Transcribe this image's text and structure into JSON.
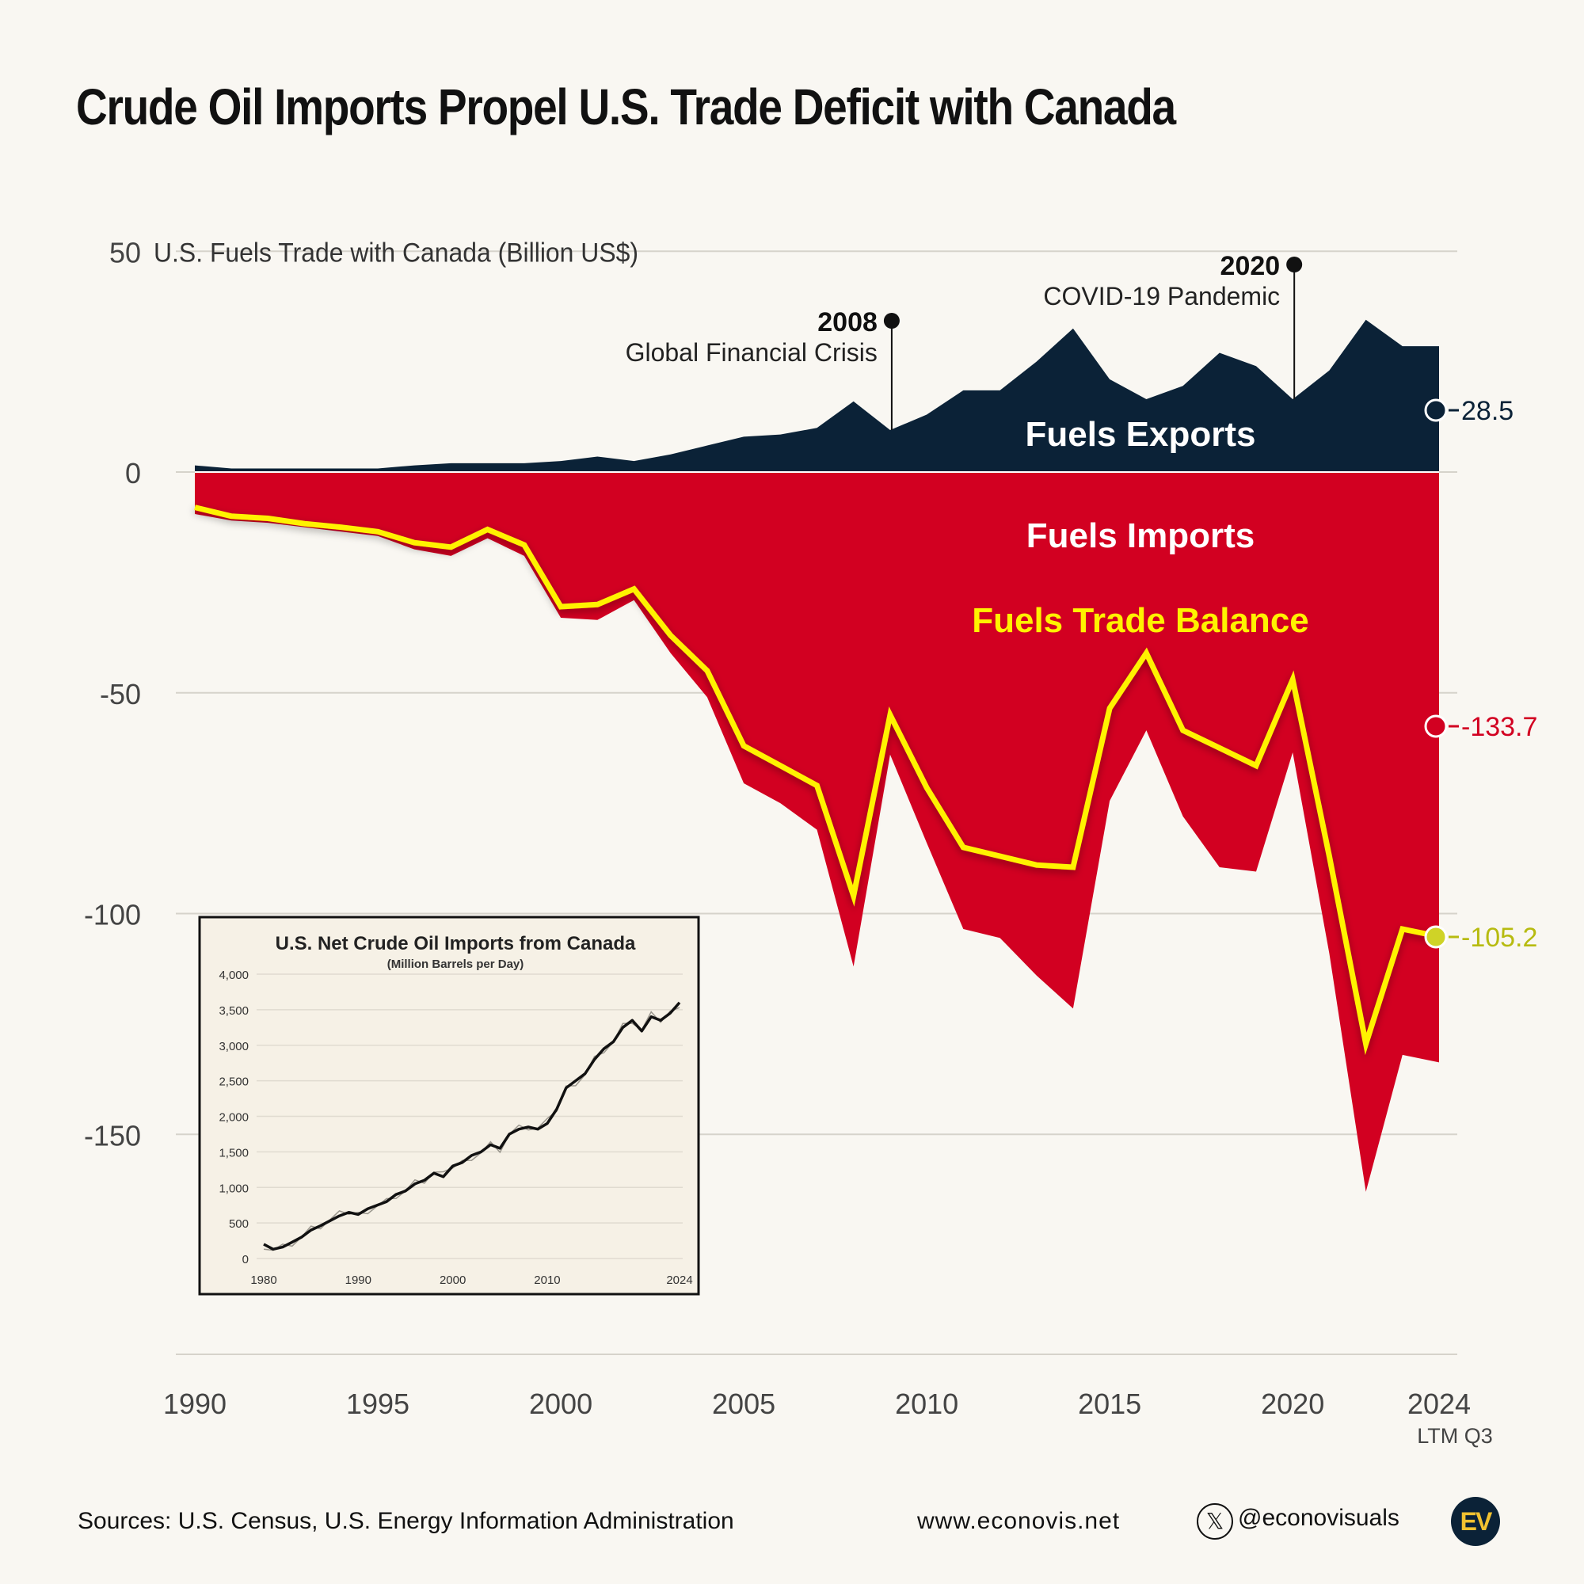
{
  "title": "Crude Oil Imports Propel U.S. Trade Deficit with Canada",
  "colors": {
    "exports": "#0b2237",
    "imports": "#d20021",
    "balance": "#fff200",
    "background": "#f9f7f2"
  },
  "chart_data": [
    {
      "type": "area",
      "ylabel": "U.S. Fuels Trade with Canada (Billion US$)",
      "ylim": [
        -200,
        50
      ],
      "yticks": [
        50,
        0,
        -50,
        -100,
        -150
      ],
      "xlim": [
        1990,
        2024
      ],
      "xticks": [
        "1990",
        "1995",
        "2000",
        "2005",
        "2010",
        "2015",
        "2020",
        "2024"
      ],
      "last_x_sublabel": "LTM Q3",
      "x": [
        1990,
        1991,
        1992,
        1993,
        1994,
        1995,
        1996,
        1997,
        1998,
        1999,
        2000,
        2001,
        2002,
        2003,
        2004,
        2005,
        2006,
        2007,
        2008,
        2009,
        2010,
        2011,
        2012,
        2013,
        2014,
        2015,
        2016,
        2017,
        2018,
        2019,
        2020,
        2021,
        2022,
        2023,
        2024
      ],
      "series": [
        {
          "name": "Fuels Exports",
          "values": [
            1.5,
            0.8,
            0.8,
            0.8,
            0.8,
            0.8,
            1.5,
            2,
            2,
            2,
            2.5,
            3.5,
            2.5,
            4,
            6,
            8,
            8.5,
            10,
            16,
            9.5,
            13,
            18.5,
            18.5,
            25,
            32.5,
            21,
            16.5,
            19.5,
            27,
            24,
            16.5,
            23,
            34.5,
            28.5,
            28.5
          ]
        },
        {
          "name": "Fuels Imports",
          "values": [
            -9.5,
            -11,
            -11.5,
            -12.5,
            -13.5,
            -14.5,
            -17.5,
            -19,
            -15,
            -19,
            -33,
            -33.5,
            -29,
            -41,
            -51,
            -70.5,
            -75,
            -81,
            -112,
            -64,
            -84,
            -103.5,
            -105.5,
            -114,
            -121.5,
            -74.5,
            -58.5,
            -78,
            -89.5,
            -90.5,
            -63.5,
            -109,
            -163,
            -132,
            -133.7
          ]
        },
        {
          "name": "Fuels Trade Balance",
          "values": [
            -8,
            -10,
            -10.5,
            -11.7,
            -12.5,
            -13.5,
            -16,
            -17,
            -13,
            -16.5,
            -30.5,
            -30,
            -26.5,
            -37,
            -45,
            -62,
            -66.5,
            -71,
            -96,
            -55,
            -71.5,
            -85,
            -87,
            -89,
            -89.5,
            -53.5,
            -41,
            -58.5,
            -62.5,
            -66.5,
            -47,
            -87,
            -129.5,
            -103.5,
            -105.2
          ]
        }
      ],
      "end_labels": [
        "28.5",
        "-133.7",
        "-105.2"
      ],
      "annotations": [
        {
          "year": "2008",
          "text": "Global Financial Crisis"
        },
        {
          "year": "2020",
          "text": "COVID-19 Pandemic"
        }
      ]
    },
    {
      "type": "line",
      "title": "U.S. Net Crude Oil Imports from Canada",
      "subtitle": "(Million Barrels per Day)",
      "ylim": [
        0,
        4000
      ],
      "yticks": [
        "4,000",
        "3,500",
        "3,000",
        "2,500",
        "2,000",
        "1,500",
        "1,000",
        "500",
        "0"
      ],
      "xlim": [
        1980,
        2024
      ],
      "xticks": [
        "1980",
        "1990",
        "2000",
        "2010",
        "2024"
      ],
      "x": [
        1980,
        1981,
        1982,
        1983,
        1984,
        1985,
        1986,
        1987,
        1988,
        1989,
        1990,
        1991,
        1992,
        1993,
        1994,
        1995,
        1996,
        1997,
        1998,
        1999,
        2000,
        2001,
        2002,
        2003,
        2004,
        2005,
        2006,
        2007,
        2008,
        2009,
        2010,
        2011,
        2012,
        2013,
        2014,
        2015,
        2016,
        2017,
        2018,
        2019,
        2020,
        2021,
        2022,
        2023,
        2024
      ],
      "values": [
        200,
        130,
        160,
        230,
        300,
        400,
        460,
        530,
        600,
        650,
        620,
        700,
        750,
        800,
        900,
        950,
        1050,
        1100,
        1200,
        1150,
        1300,
        1350,
        1450,
        1500,
        1600,
        1550,
        1750,
        1820,
        1850,
        1820,
        1900,
        2100,
        2400,
        2500,
        2600,
        2800,
        2950,
        3050,
        3250,
        3350,
        3200,
        3400,
        3350,
        3450,
        3600
      ]
    }
  ],
  "footer": {
    "sources": "Sources: U.S. Census, U.S. Energy Information Administration",
    "website": "www.econovis.net",
    "handle": "@econovisuals",
    "logo": "EV"
  }
}
